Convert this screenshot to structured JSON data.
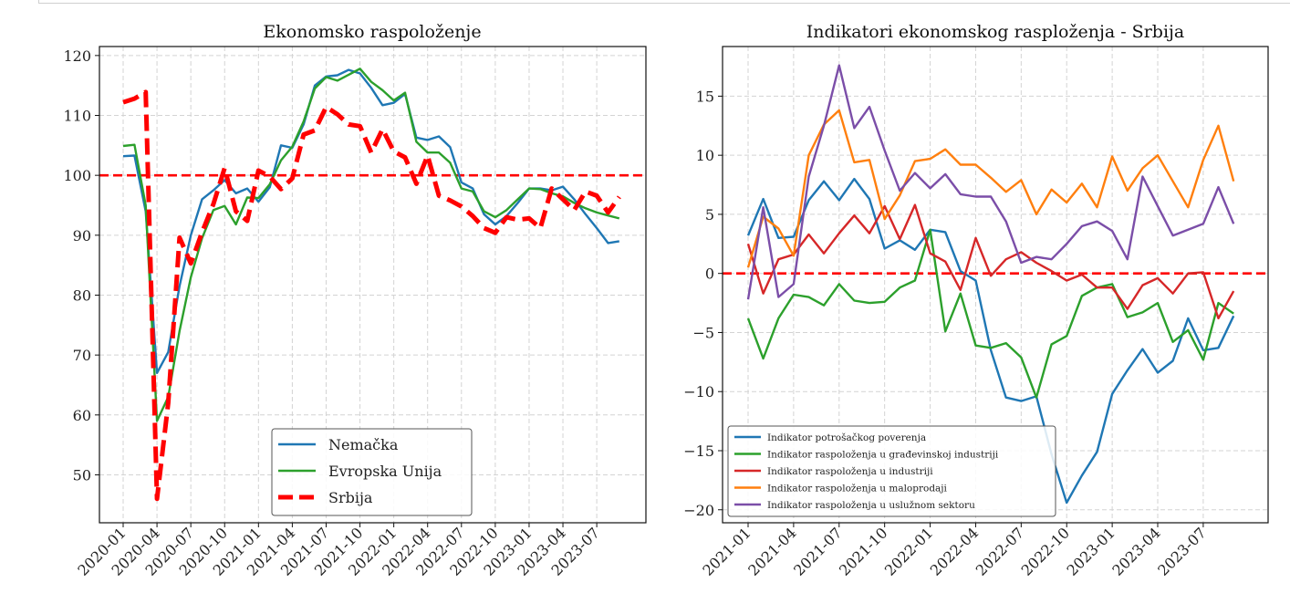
{
  "chart_data": [
    {
      "type": "line",
      "title": "Ekonomsko raspoloženje",
      "xlabel": "",
      "ylabel": "",
      "ylim": [
        42,
        121.5
      ],
      "yticks": [
        "50",
        "60",
        "70",
        "80",
        "90",
        "100",
        "110",
        "120"
      ],
      "ytick_values": [
        50,
        60,
        70,
        80,
        90,
        100,
        110,
        120
      ],
      "xticks": [
        "2020-01",
        "2020-04",
        "2020-07",
        "2020-10",
        "2021-01",
        "2021-04",
        "2021-07",
        "2021-10",
        "2022-01",
        "2022-04",
        "2022-07",
        "2022-10",
        "2023-01",
        "2023-04",
        "2023-07"
      ],
      "x_start": "2020-01",
      "x_step": "month",
      "grid": true,
      "reference_line": {
        "y": 100,
        "color": "#ff0000",
        "style": "dashed"
      },
      "legend_position": "lower-center",
      "series": [
        {
          "name": "Nemačka",
          "color": "#1f77b4",
          "style": "solid",
          "values": [
            103.2,
            103.3,
            94,
            67,
            70.5,
            81.5,
            90,
            96,
            97.5,
            99.2,
            97,
            97.8,
            95.6,
            98,
            105,
            104.6,
            108.5,
            115,
            116.5,
            116.7,
            117.6,
            117,
            114.6,
            111.7,
            112.1,
            113.6,
            106.3,
            105.9,
            106.5,
            104.7,
            98.8,
            97.8,
            93.5,
            91.8,
            93.2,
            95.4,
            97.8,
            97.8,
            97.5,
            98.1,
            96,
            93.5,
            91.2,
            88.7,
            89
          ]
        },
        {
          "name": "Evropska Unija",
          "color": "#2ca02c",
          "style": "solid",
          "values": [
            104.9,
            105.1,
            95,
            59,
            63,
            74,
            83,
            89.5,
            94.2,
            94.9,
            91.8,
            96.3,
            96.2,
            98.5,
            102.5,
            104.8,
            109,
            114.5,
            116.4,
            115.8,
            116.8,
            117.8,
            115.6,
            114.2,
            112.5,
            113.8,
            105.6,
            103.8,
            103.8,
            102.1,
            97.8,
            97.3,
            94,
            93,
            94.2,
            96,
            97.8,
            97.7,
            97,
            96.5,
            95.4,
            94.5,
            93.8,
            93.3,
            92.8
          ]
        },
        {
          "name": "Srbija",
          "color": "#ff0000",
          "style": "dashed",
          "values": [
            112.2,
            112.8,
            113.9,
            46,
            62,
            89.6,
            85.3,
            90.5,
            95.2,
            101.2,
            94,
            92.4,
            100.8,
            99.8,
            97.7,
            99.5,
            106.8,
            107.5,
            111.4,
            110.2,
            108.5,
            108.2,
            103.8,
            107.7,
            104,
            103,
            98.6,
            103.3,
            96.6,
            95.8,
            94.8,
            93.2,
            91.2,
            90.4,
            93,
            92.6,
            92.8,
            91.2,
            97.8,
            96,
            94.2,
            97.3,
            96.6,
            93.8,
            96.4
          ]
        }
      ]
    },
    {
      "type": "line",
      "title": "Indikatori ekonomskog rasploženja - Srbija",
      "xlabel": "",
      "ylabel": "",
      "ylim": [
        -21.1,
        19.2
      ],
      "yticks": [
        "−20",
        "−15",
        "−10",
        "−5",
        "0",
        "5",
        "10",
        "15"
      ],
      "ytick_values": [
        -20,
        -15,
        -10,
        -5,
        0,
        5,
        10,
        15
      ],
      "xticks": [
        "2021-01",
        "2021-04",
        "2021-07",
        "2021-10",
        "2022-01",
        "2022-04",
        "2022-07",
        "2022-10",
        "2023-01",
        "2023-04",
        "2023-07"
      ],
      "x_start": "2021-01",
      "x_step": "month",
      "grid": true,
      "reference_line": {
        "y": 0,
        "color": "#ff0000",
        "style": "dashed"
      },
      "legend_position": "lower-left",
      "series": [
        {
          "name": "Indikator potrošačkog poverenja",
          "color": "#1f77b4",
          "values": [
            3.2,
            6.3,
            3,
            3.1,
            6.2,
            7.8,
            6.2,
            8,
            6.3,
            2.1,
            2.8,
            2,
            3.7,
            3.5,
            0.2,
            -0.6,
            -6.5,
            -10.5,
            -10.8,
            -10.4,
            -15.3,
            -19.4,
            -17.1,
            -15.1,
            -10.2,
            -8.2,
            -6.4,
            -8.4,
            -7.4,
            -3.8,
            -6.5,
            -6.3,
            -3.6
          ]
        },
        {
          "name": "Indikator raspoloženja u građevinskoj industriji",
          "color": "#2ca02c",
          "values": [
            -3.8,
            -7.2,
            -3.8,
            -1.8,
            -2,
            -2.7,
            -0.9,
            -2.3,
            -2.5,
            -2.4,
            -1.2,
            -0.6,
            3.7,
            -4.9,
            -1.7,
            -6.1,
            -6.3,
            -5.9,
            -7.1,
            -10.5,
            -6,
            -5.3,
            -1.9,
            -1.2,
            -0.9,
            -3.7,
            -3.3,
            -2.5,
            -5.8,
            -4.8,
            -7.3,
            -2.5,
            -3.4
          ]
        },
        {
          "name": "Indikator raspoloženja u industriji",
          "color": "#d62728",
          "values": [
            2.5,
            -1.7,
            1.2,
            1.6,
            3.3,
            1.7,
            3.4,
            4.9,
            3.4,
            5.7,
            2.9,
            5.8,
            1.7,
            1.0,
            -1.4,
            3.0,
            -0.2,
            1.2,
            1.8,
            0.9,
            0.2,
            -0.6,
            -0.1,
            -1.2,
            -1.2,
            -3.0,
            -1.0,
            -0.4,
            -1.7,
            0.0,
            0.1,
            -3.8,
            -1.5
          ]
        },
        {
          "name": "Indikator raspoloženja u maloprodaji",
          "color": "#ff7f0e",
          "values": [
            0.5,
            4.8,
            3.8,
            1.5,
            10,
            12.6,
            13.8,
            9.4,
            9.6,
            4.6,
            6.6,
            9.5,
            9.7,
            10.5,
            9.2,
            9.2,
            8.1,
            6.9,
            7.9,
            5.0,
            7.1,
            6.0,
            7.6,
            5.6,
            9.9,
            7.0,
            8.9,
            10.0,
            7.8,
            5.6,
            9.6,
            12.5,
            7.8
          ]
        },
        {
          "name": "Indikator raspoloženja u uslužnom sektoru",
          "color": "#7b4ea8",
          "values": [
            -2.2,
            5.6,
            -2.0,
            -0.9,
            8.2,
            12.5,
            17.6,
            12.3,
            14.1,
            10.4,
            7.0,
            8.5,
            7.2,
            8.4,
            6.7,
            6.5,
            6.5,
            4.4,
            0.9,
            1.4,
            1.2,
            2.5,
            4.0,
            4.4,
            3.6,
            1.2,
            8.2,
            5.7,
            3.2,
            3.7,
            4.2,
            7.3,
            4.2
          ]
        }
      ]
    }
  ]
}
